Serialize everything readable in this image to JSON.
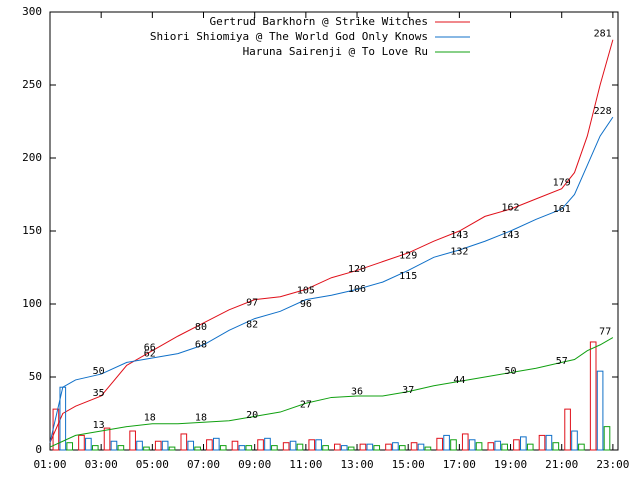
{
  "chart_data": {
    "type": "line",
    "xlim": [
      1,
      23.2
    ],
    "ylim": [
      0,
      300
    ],
    "yticks": [
      0,
      50,
      100,
      150,
      200,
      250,
      300
    ],
    "xticks": [
      {
        "value": 1,
        "label": "01:00"
      },
      {
        "value": 3,
        "label": "03:00"
      },
      {
        "value": 5,
        "label": "05:00"
      },
      {
        "value": 7,
        "label": "07:00"
      },
      {
        "value": 9,
        "label": "09:00"
      },
      {
        "value": 11,
        "label": "11:00"
      },
      {
        "value": 13,
        "label": "13:00"
      },
      {
        "value": 15,
        "label": "15:00"
      },
      {
        "value": 17,
        "label": "17:00"
      },
      {
        "value": 19,
        "label": "19:00"
      },
      {
        "value": 21,
        "label": "21:00"
      },
      {
        "value": 23,
        "label": "23:00"
      }
    ],
    "x": [
      1,
      1.5,
      2,
      3,
      4,
      5,
      6,
      7,
      8,
      9,
      10,
      11,
      12,
      13,
      14,
      15,
      16,
      17,
      18,
      19,
      20,
      21,
      21.5,
      22,
      22.5,
      23
    ],
    "bar_x": [
      1,
      2,
      3,
      4,
      5,
      6,
      7,
      8,
      9,
      10,
      11,
      12,
      13,
      14,
      15,
      16,
      17,
      18,
      19,
      20,
      21,
      22
    ],
    "series": [
      {
        "name": "Gertrud Barkhorn @ Strike Witches",
        "color": "#e0101a",
        "values": [
          5,
          25,
          30,
          37,
          58,
          68,
          78,
          87,
          96,
          103,
          105,
          110,
          118,
          123,
          129,
          135,
          143,
          150,
          160,
          165,
          172,
          179,
          190,
          215,
          250,
          281
        ],
        "bar_values": [
          28,
          10,
          15,
          13,
          6,
          11,
          7,
          6,
          7,
          5,
          7,
          4,
          4,
          4,
          5,
          8,
          11,
          5,
          7,
          10,
          28,
          74
        ],
        "label_x": [
          2.9,
          4.9,
          6.9,
          8.9,
          11,
          13,
          15,
          17,
          19,
          21,
          22.6
        ],
        "label_values": [
          35,
          66,
          80,
          97,
          105,
          120,
          129,
          143,
          162,
          179,
          281
        ]
      },
      {
        "name": "Shiori Shiomiya @ The World God Only Knows",
        "color": "#1070c8",
        "values": [
          5,
          43,
          48,
          52,
          60,
          63,
          66,
          72,
          82,
          90,
          95,
          103,
          106,
          110,
          115,
          123,
          132,
          137,
          143,
          150,
          158,
          165,
          175,
          195,
          215,
          228
        ],
        "bar_values": [
          43,
          8,
          6,
          6,
          6,
          6,
          8,
          3,
          8,
          6,
          7,
          3,
          4,
          5,
          4,
          10,
          7,
          6,
          9,
          10,
          13,
          54
        ],
        "label_x": [
          2.9,
          4.9,
          6.9,
          8.9,
          11,
          13,
          15,
          17,
          19,
          21,
          22.6
        ],
        "label_values": [
          50,
          62,
          68,
          82,
          96,
          106,
          115,
          132,
          143,
          161,
          228
        ]
      },
      {
        "name": "Haruna Sairenji @ To Love Ru",
        "color": "#10a010",
        "values": [
          2,
          6,
          10,
          13,
          16,
          18,
          18,
          19,
          20,
          23,
          26,
          32,
          36,
          37,
          37,
          40,
          44,
          47,
          50,
          53,
          56,
          60,
          62,
          68,
          72,
          77
        ],
        "bar_values": [
          5,
          3,
          3,
          2,
          2,
          2,
          3,
          3,
          3,
          4,
          3,
          2,
          3,
          3,
          2,
          7,
          5,
          4,
          4,
          5,
          4,
          16
        ],
        "label_x": [
          2.9,
          4.9,
          6.9,
          8.9,
          11,
          13,
          15,
          17,
          19,
          21,
          22.7
        ],
        "label_values": [
          13,
          18,
          18,
          20,
          27,
          36,
          37,
          44,
          50,
          57,
          77
        ]
      }
    ]
  }
}
